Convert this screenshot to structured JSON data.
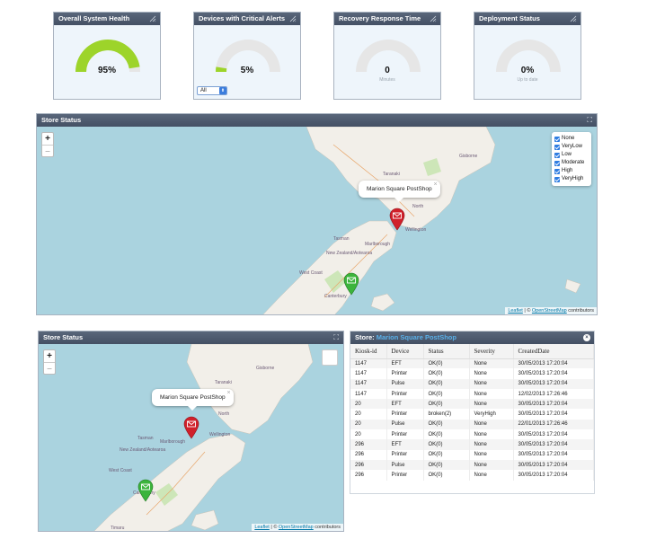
{
  "gauges": [
    {
      "title": "Overall System Health",
      "value_text": "95%",
      "sub": "",
      "fill": 0.95,
      "color": "#9dd42a"
    },
    {
      "title": "Devices with Critical Alerts",
      "value_text": "5%",
      "sub": "",
      "fill": 0.05,
      "color": "#9dd42a",
      "select_value": "All"
    },
    {
      "title": "Recovery Response Time",
      "value_text": "0",
      "sub": "Minutes",
      "fill": 0,
      "color": "#9dd42a"
    },
    {
      "title": "Deployment Status",
      "value_text": "0%",
      "sub": "Up to date",
      "fill": 0,
      "color": "#9dd42a"
    }
  ],
  "map_top": {
    "title": "Store Status",
    "zoom_in": "+",
    "zoom_out": "–",
    "popup": "Marion Square PostShop",
    "legend": [
      "None",
      "VeryLow",
      "Low",
      "Moderate",
      "High",
      "VeryHigh"
    ],
    "attribution_link1": "Leaflet",
    "attribution_sep": " | © ",
    "attribution_link2": "OpenStreetMap",
    "attribution_tail": " contributors",
    "places": [
      "Gisborne",
      "Taranaki",
      "Wellington",
      "Marlborough",
      "Tasman",
      "New Zealand/Aotearoa",
      "West Coast",
      "Canterbury",
      "North",
      "Manawatu-Wanganui",
      "Hawke's Bay"
    ]
  },
  "map_bottom": {
    "title": "Store Status",
    "zoom_in": "+",
    "zoom_out": "–",
    "popup": "Marion Square PostShop",
    "attribution_link1": "Leaflet",
    "attribution_sep": " | © ",
    "attribution_link2": "OpenStreetMap",
    "attribution_tail": " contributors",
    "places": [
      "Gisborne",
      "Taranaki",
      "Wellington",
      "Marlborough",
      "Tasman",
      "New Zealand/Aotearoa",
      "West Coast",
      "Canterbury",
      "North",
      "Timaru"
    ]
  },
  "store_table": {
    "title_prefix": "Store:",
    "store_name": "Marion Square PostShop",
    "columns": [
      "Kiosk-id",
      "Device",
      "Status",
      "Severity",
      "CreatedDate"
    ],
    "rows": [
      [
        "1147",
        "EFT",
        "OK(0)",
        "None",
        "30/05/2013 17:20:04"
      ],
      [
        "1147",
        "Printer",
        "OK(0)",
        "None",
        "30/05/2013 17:20:04"
      ],
      [
        "1147",
        "Pulse",
        "OK(0)",
        "None",
        "30/05/2013 17:20:04"
      ],
      [
        "1147",
        "Printer",
        "OK(0)",
        "None",
        "12/02/2013 17:26:46"
      ],
      [
        "20",
        "EFT",
        "OK(0)",
        "None",
        "30/05/2013 17:20:04"
      ],
      [
        "20",
        "Printer",
        "broken(2)",
        "VeryHigh",
        "30/05/2013 17:20:04"
      ],
      [
        "20",
        "Pulse",
        "OK(0)",
        "None",
        "22/01/2013 17:26:46"
      ],
      [
        "20",
        "Printer",
        "OK(0)",
        "None",
        "30/05/2013 17:20:04"
      ],
      [
        "296",
        "EFT",
        "OK(0)",
        "None",
        "30/05/2013 17:20:04"
      ],
      [
        "296",
        "Printer",
        "OK(0)",
        "None",
        "30/05/2013 17:20:04"
      ],
      [
        "296",
        "Pulse",
        "OK(0)",
        "None",
        "30/05/2013 17:20:04"
      ],
      [
        "296",
        "Printer",
        "OK(0)",
        "None",
        "30/05/2013 17:20:04"
      ]
    ]
  },
  "colors": {
    "header": "#4a5568",
    "gauge_green": "#9dd42a",
    "gauge_empty": "#e6e6e6",
    "water": "#aad3df",
    "land": "#f2efe9",
    "pin_red": "#d0202a",
    "pin_green": "#3cb43c"
  }
}
